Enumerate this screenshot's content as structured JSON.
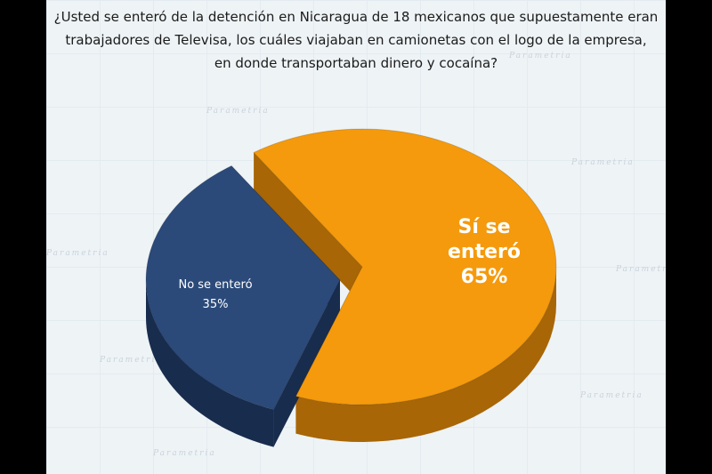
{
  "title_lines": [
    "¿Usted se enteró de la detención en Nicaragua de 18 mexicanos que supuestamente eran",
    "trabajadores de Televisa, los cuáles viajaban en camionetas con el logo de la empresa,",
    "en donde transportaban dinero y cocaína?"
  ],
  "watermark_text": "Parametria",
  "chart_data": {
    "type": "pie",
    "style": "3d-exploded",
    "title": "¿Usted se enteró de la detención en Nicaragua de 18 mexicanos que supuestamente eran trabajadores de Televisa, los cuáles viajaban en camionetas con el logo de la empresa, en donde transportaban dinero y cocaína?",
    "slices": [
      {
        "label_lines": [
          "Sí se",
          "enteró",
          "65%"
        ],
        "value": 65,
        "color": "#f59a0c",
        "side_color": "#a86606"
      },
      {
        "label_lines": [
          "No se enteró",
          "35%"
        ],
        "value": 35,
        "color": "#2b4a7a",
        "side_color": "#182c4d"
      }
    ]
  }
}
